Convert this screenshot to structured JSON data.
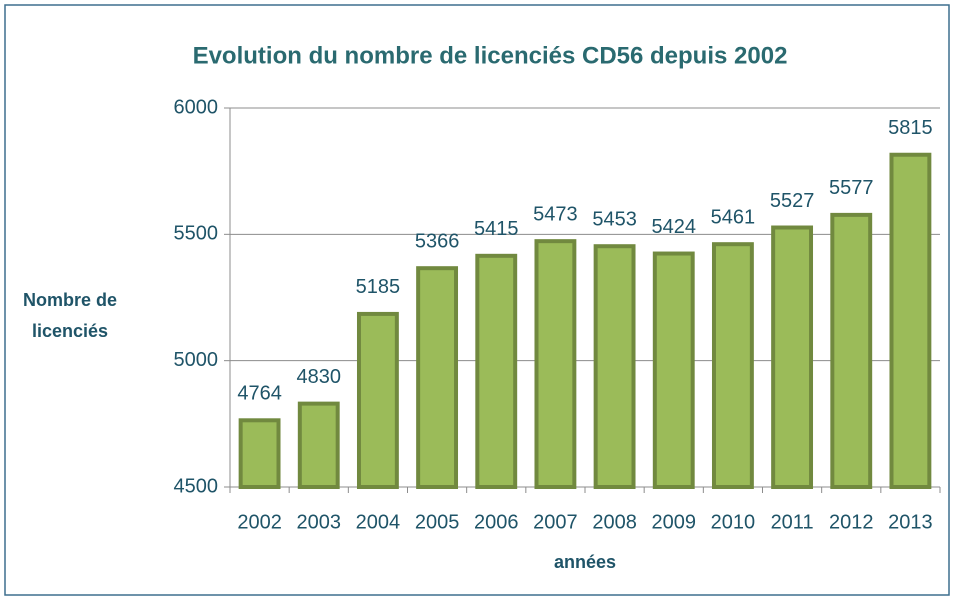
{
  "chart_data": {
    "type": "bar",
    "title": "Evolution du nombre de licenciés CD56 depuis 2002",
    "xlabel": "années",
    "ylabel": "Nombre de licenciés",
    "categories": [
      "2002",
      "2003",
      "2004",
      "2005",
      "2006",
      "2007",
      "2008",
      "2009",
      "2010",
      "2011",
      "2012",
      "2013"
    ],
    "values": [
      4764,
      4830,
      5185,
      5366,
      5415,
      5473,
      5453,
      5424,
      5461,
      5527,
      5577,
      5815
    ],
    "color": "#9bbb59",
    "ylim": [
      4500,
      6000
    ],
    "yticks": [
      4500,
      5000,
      5500,
      6000
    ],
    "grid": true
  }
}
